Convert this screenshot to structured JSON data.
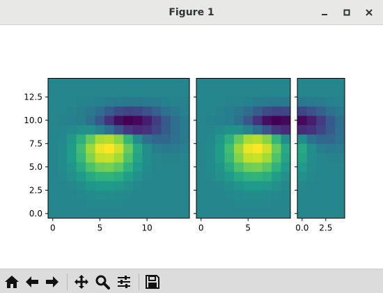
{
  "window": {
    "title": "Figure 1",
    "controls": [
      "minimize",
      "maximize",
      "close"
    ]
  },
  "toolbar": {
    "icons": [
      "home-icon",
      "back-arrow-icon",
      "forward-arrow-icon",
      "pan-icon",
      "zoom-icon",
      "subplots-icon",
      "save-icon"
    ]
  },
  "colors": {
    "titlebar": "#e8e8e7",
    "toolbar": "#dcdcdc",
    "colormap": "viridis"
  },
  "chart_data": [
    {
      "type": "heatmap",
      "colormap": "viridis",
      "x_range": [
        -0.5,
        14.5
      ],
      "y_range": [
        -0.5,
        14.5
      ],
      "xticks": [
        0,
        5,
        10
      ],
      "xtick_labels": [
        "0",
        "5",
        "10"
      ],
      "yticks": [
        0.0,
        2.5,
        5.0,
        7.5,
        10.0,
        12.5
      ],
      "ytick_labels": [
        "0.0",
        "2.5",
        "5.0",
        "7.5",
        "10.0",
        "12.5"
      ],
      "rows_bottom_to_top": [
        [
          0.46,
          0.46,
          0.46,
          0.46,
          0.46,
          0.46,
          0.46,
          0.46,
          0.46,
          0.46,
          0.46,
          0.46,
          0.46,
          0.46,
          0.46
        ],
        [
          0.46,
          0.46,
          0.46,
          0.46,
          0.47,
          0.47,
          0.47,
          0.47,
          0.46,
          0.46,
          0.46,
          0.46,
          0.46,
          0.46,
          0.46
        ],
        [
          0.46,
          0.46,
          0.46,
          0.47,
          0.48,
          0.49,
          0.49,
          0.48,
          0.47,
          0.46,
          0.46,
          0.46,
          0.46,
          0.46,
          0.46
        ],
        [
          0.46,
          0.46,
          0.47,
          0.49,
          0.52,
          0.54,
          0.54,
          0.53,
          0.5,
          0.47,
          0.46,
          0.46,
          0.46,
          0.46,
          0.46
        ],
        [
          0.46,
          0.47,
          0.5,
          0.54,
          0.6,
          0.64,
          0.65,
          0.62,
          0.56,
          0.5,
          0.47,
          0.46,
          0.46,
          0.46,
          0.46
        ],
        [
          0.46,
          0.48,
          0.52,
          0.61,
          0.71,
          0.78,
          0.79,
          0.74,
          0.64,
          0.54,
          0.48,
          0.46,
          0.46,
          0.46,
          0.46
        ],
        [
          0.46,
          0.48,
          0.55,
          0.67,
          0.81,
          0.91,
          0.92,
          0.86,
          0.72,
          0.58,
          0.49,
          0.46,
          0.45,
          0.45,
          0.46
        ],
        [
          0.46,
          0.48,
          0.55,
          0.69,
          0.85,
          0.97,
          1.0,
          0.93,
          0.77,
          0.6,
          0.49,
          0.43,
          0.41,
          0.42,
          0.44
        ],
        [
          0.46,
          0.47,
          0.53,
          0.63,
          0.76,
          0.87,
          0.89,
          0.82,
          0.66,
          0.49,
          0.37,
          0.33,
          0.33,
          0.37,
          0.42
        ],
        [
          0.46,
          0.46,
          0.48,
          0.5,
          0.5,
          0.45,
          0.36,
          0.26,
          0.16,
          0.12,
          0.14,
          0.21,
          0.29,
          0.36,
          0.42
        ],
        [
          0.46,
          0.45,
          0.44,
          0.43,
          0.37,
          0.27,
          0.14,
          0.04,
          0.0,
          0.02,
          0.08,
          0.18,
          0.28,
          0.36,
          0.42
        ],
        [
          0.46,
          0.46,
          0.45,
          0.43,
          0.4,
          0.35,
          0.29,
          0.23,
          0.2,
          0.21,
          0.25,
          0.31,
          0.37,
          0.41,
          0.44
        ],
        [
          0.46,
          0.46,
          0.46,
          0.45,
          0.45,
          0.44,
          0.42,
          0.41,
          0.4,
          0.4,
          0.41,
          0.42,
          0.44,
          0.45,
          0.45
        ],
        [
          0.46,
          0.46,
          0.46,
          0.46,
          0.46,
          0.46,
          0.46,
          0.46,
          0.46,
          0.46,
          0.46,
          0.46,
          0.46,
          0.46,
          0.46
        ],
        [
          0.46,
          0.46,
          0.46,
          0.46,
          0.46,
          0.46,
          0.46,
          0.46,
          0.46,
          0.46,
          0.46,
          0.46,
          0.46,
          0.46,
          0.46
        ]
      ]
    },
    {
      "type": "heatmap",
      "colormap": "viridis",
      "x_range": [
        -0.5,
        9.5
      ],
      "y_range": [
        -0.5,
        14.5
      ],
      "shared_y": true,
      "xticks": [
        0,
        5
      ],
      "xtick_labels": [
        "0",
        "5"
      ]
    },
    {
      "type": "heatmap",
      "colormap": "viridis",
      "x_range": [
        -0.5,
        4.5
      ],
      "y_range": [
        -0.5,
        14.5
      ],
      "shared_y": true,
      "data_column_offset": 9,
      "xticks": [
        0.0,
        2.5
      ],
      "xtick_labels": [
        "0.0",
        "2.5"
      ]
    }
  ]
}
